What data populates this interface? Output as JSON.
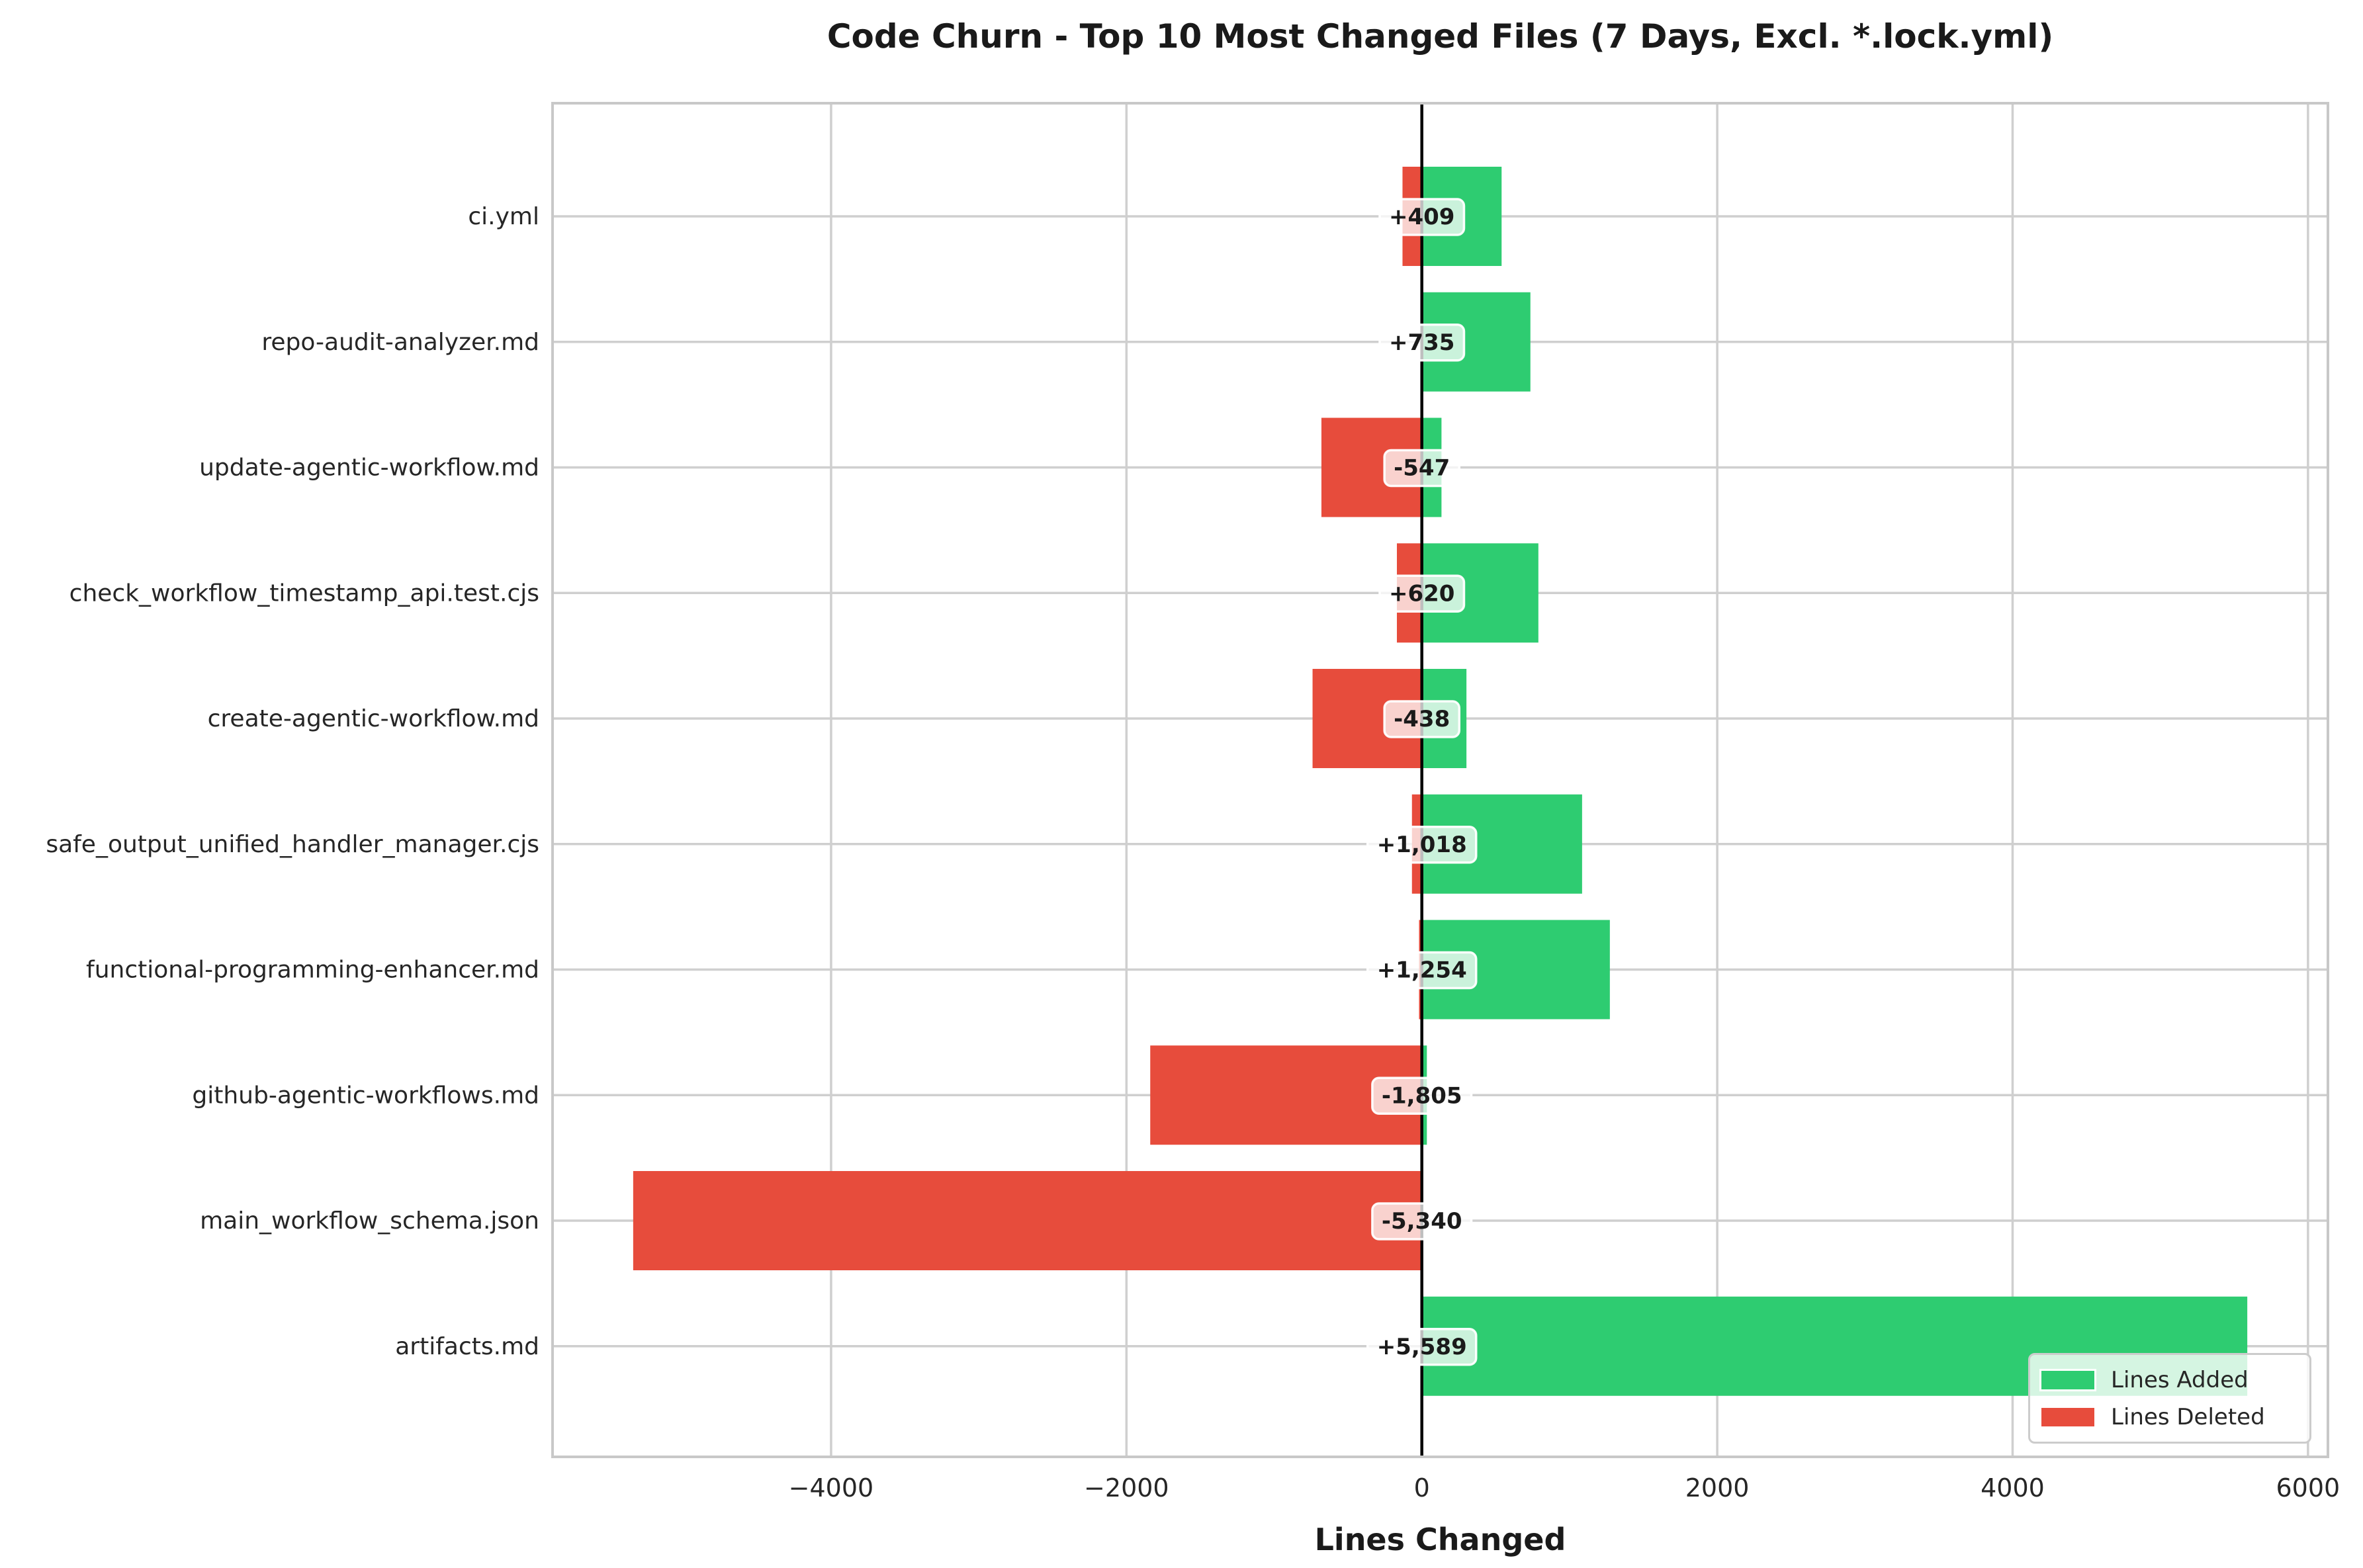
{
  "chart_data": {
    "type": "bar",
    "orientation": "horizontal-diverging",
    "title": "Code Churn - Top 10 Most Changed Files (7 Days, Excl. *.lock.yml)",
    "xlabel": "Lines Changed",
    "categories": [
      "ci.yml",
      "repo-audit-analyzer.md",
      "update-agentic-workflow.md",
      "check_workflow_timestamp_api.test.cjs",
      "create-agentic-workflow.md",
      "safe_output_unified_handler_manager.cjs",
      "functional-programming-enhancer.md",
      "github-agentic-workflows.md",
      "main_workflow_schema.json",
      "artifacts.md"
    ],
    "series": [
      {
        "name": "Lines Added",
        "color": "#2ecc71",
        "direction": "positive",
        "values": [
          540,
          735,
          133,
          789,
          302,
          1085,
          1273,
          34,
          0,
          5589
        ]
      },
      {
        "name": "Lines Deleted",
        "color": "#e74c3c",
        "direction": "negative",
        "values": [
          131,
          0,
          680,
          169,
          740,
          67,
          19,
          1839,
          5340,
          0
        ]
      }
    ],
    "net_change_labels": [
      "+409",
      "+735",
      "-547",
      "+620",
      "-438",
      "+1,018",
      "+1,254",
      "-1,805",
      "-5,340",
      "+5,589"
    ],
    "xlim": [
      -5886,
      6135
    ],
    "xticks": [
      -4000,
      -2000,
      0,
      2000,
      4000,
      6000
    ],
    "xtick_labels": [
      "−4000",
      "−2000",
      "0",
      "2000",
      "4000",
      "6000"
    ],
    "grid": true,
    "grid_color": "#cfcfcf",
    "spine_color": "#c8c8c8",
    "zero_line_color": "#000000",
    "text_color": "#262626",
    "title_color": "#1a1a1a",
    "label_box_fill": "rgba(255,255,255,0.75)",
    "label_box_edge": "rgba(255,255,255,0.95)",
    "legend_position": "lower right"
  }
}
